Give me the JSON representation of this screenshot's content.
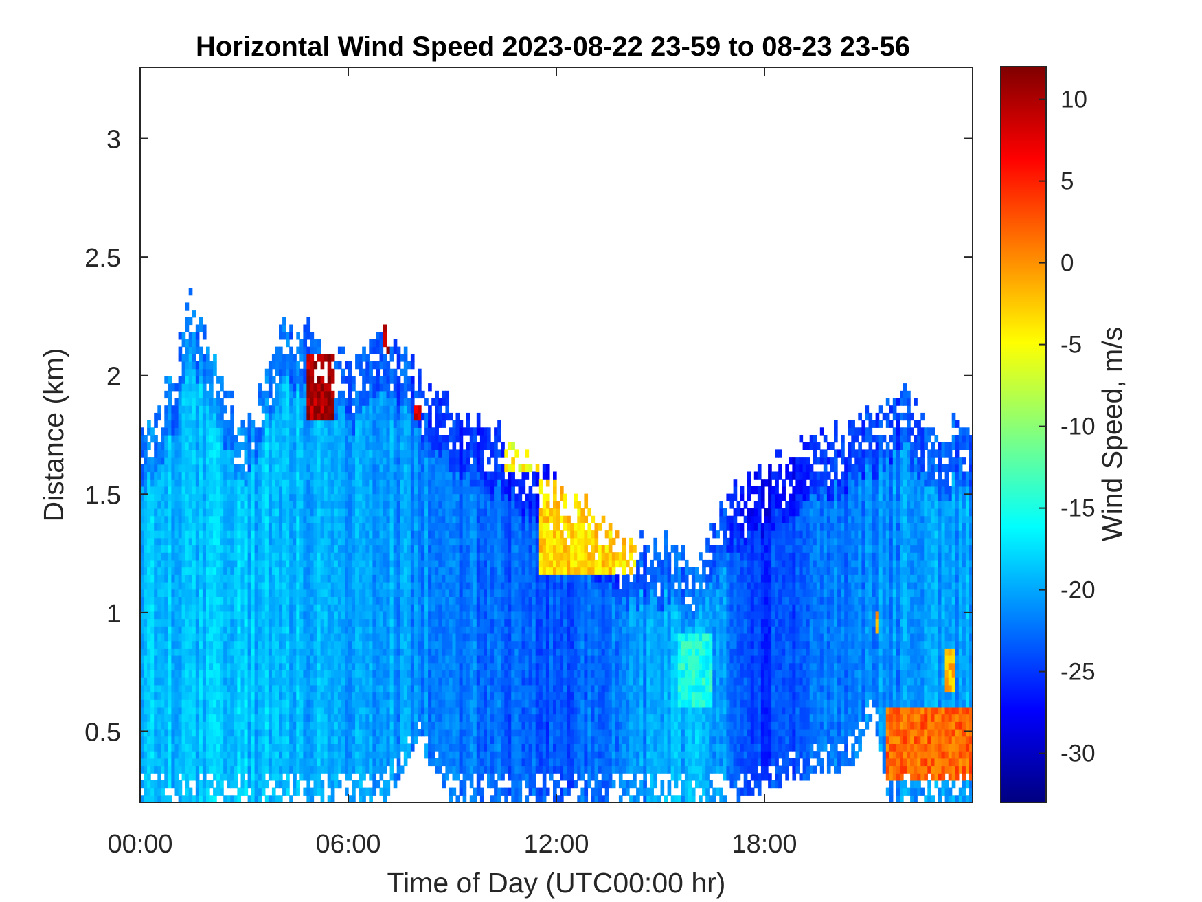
{
  "chart_data": {
    "type": "heatmap",
    "title": "Horizontal Wind Speed 2023-08-22 23-59 to 08-23 23-56",
    "xlabel": "Time of Day (UTC00:00 hr)",
    "ylabel": "Distance (km)",
    "x_unit": "hours",
    "xlim": [
      0,
      24
    ],
    "ylim": [
      0.2,
      3.3
    ],
    "x_ticks": [
      0,
      6,
      12,
      18
    ],
    "x_tick_labels": [
      "00:00",
      "06:00",
      "12:00",
      "18:00"
    ],
    "y_ticks": [
      0.5,
      1,
      1.5,
      2,
      2.5,
      3
    ],
    "y_tick_labels": [
      "0.5",
      "1",
      "1.5",
      "2",
      "2.5",
      "3"
    ],
    "colorbar": {
      "label": "Wind Speed, m/s",
      "colormap": "jet",
      "clim": [
        -33,
        12
      ],
      "ticks": [
        10,
        5,
        0,
        -5,
        -10,
        -15,
        -20,
        -25,
        -30
      ],
      "tick_labels": [
        "10",
        "5",
        "0",
        "-5",
        "-10",
        "-15",
        "-20",
        "-25",
        "-30"
      ]
    },
    "grid": false,
    "data_description": "Values approximated from the image",
    "top_of_data_km": [
      [
        0,
        1.75
      ],
      [
        1,
        2.0
      ],
      [
        1.4,
        2.4
      ],
      [
        2,
        2.1
      ],
      [
        3,
        1.8
      ],
      [
        4,
        2.2
      ],
      [
        5,
        2.2
      ],
      [
        6,
        2.05
      ],
      [
        7,
        2.2
      ],
      [
        8,
        2.0
      ],
      [
        9,
        1.85
      ],
      [
        10,
        1.8
      ],
      [
        11,
        1.7
      ],
      [
        12,
        1.55
      ],
      [
        13,
        1.45
      ],
      [
        14,
        1.3
      ],
      [
        15,
        1.3
      ],
      [
        16,
        1.25
      ],
      [
        17,
        1.5
      ],
      [
        18,
        1.6
      ],
      [
        19,
        1.7
      ],
      [
        20,
        1.75
      ],
      [
        21,
        1.85
      ],
      [
        22,
        1.95
      ],
      [
        23,
        1.75
      ],
      [
        24,
        1.8
      ]
    ],
    "bottom_of_data_km": [
      [
        0,
        0.2
      ],
      [
        7,
        0.2
      ],
      [
        7.5,
        0.3
      ],
      [
        8,
        0.45
      ],
      [
        8.3,
        0.35
      ],
      [
        9,
        0.2
      ],
      [
        17,
        0.2
      ],
      [
        19,
        0.3
      ],
      [
        20.5,
        0.35
      ],
      [
        21.2,
        0.55
      ],
      [
        21.5,
        0.2
      ],
      [
        24,
        0.2
      ]
    ],
    "background_speed_ms": [
      [
        0,
        -19
      ],
      [
        4,
        -19
      ],
      [
        6,
        -20
      ],
      [
        8,
        -21
      ],
      [
        12,
        -24
      ],
      [
        16,
        -19
      ],
      [
        18,
        -25
      ],
      [
        20,
        -22
      ],
      [
        24,
        -20
      ]
    ],
    "features": [
      {
        "x_range": [
          4.8,
          5.6
        ],
        "y_range": [
          1.8,
          2.1
        ],
        "value_ms": 10
      },
      {
        "x_range": [
          7.0,
          7.2
        ],
        "y_range": [
          2.1,
          2.2
        ],
        "value_ms": 10
      },
      {
        "x_range": [
          7.9,
          8.1
        ],
        "y_range": [
          1.8,
          1.9
        ],
        "value_ms": 8
      },
      {
        "x_range": [
          10.5,
          11.5
        ],
        "y_range": [
          1.6,
          1.85
        ],
        "value_ms": -5
      },
      {
        "x_range": [
          11.5,
          14.3
        ],
        "y_range": [
          1.15,
          1.55
        ],
        "value_ms": -3
      },
      {
        "x_range": [
          14.3,
          15.2
        ],
        "y_range": [
          1.35,
          1.65
        ],
        "value_ms": -7
      },
      {
        "x_range": [
          15.5,
          16.5
        ],
        "y_range": [
          0.6,
          0.9
        ],
        "value_ms": -15
      },
      {
        "x_range": [
          21.5,
          24.0
        ],
        "y_range": [
          0.3,
          0.6
        ],
        "value_ms": 2
      },
      {
        "x_range": [
          21.2,
          21.3
        ],
        "y_range": [
          0.9,
          1.0
        ],
        "value_ms": 0
      },
      {
        "x_range": [
          23.2,
          23.5
        ],
        "y_range": [
          0.65,
          0.85
        ],
        "value_ms": -2
      }
    ]
  }
}
